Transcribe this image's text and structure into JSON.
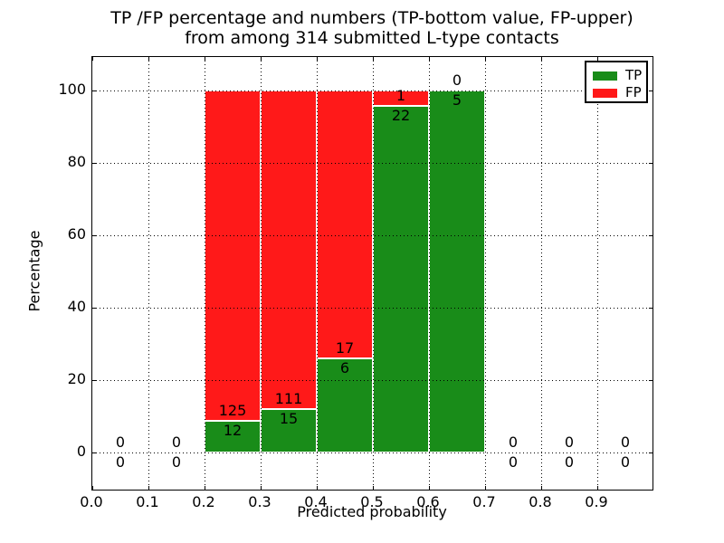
{
  "title": {
    "line1": "TP /FP percentage and numbers (TP-bottom value, FP-upper)",
    "line2": "from among 314 submitted L-type contacts"
  },
  "axes": {
    "ylabel": "Percentage",
    "xlabel": "Predicted probability",
    "y_ticks": [
      0,
      20,
      40,
      60,
      80,
      100
    ],
    "x_ticks": [
      "0.0",
      "0.1",
      "0.2",
      "0.3",
      "0.4",
      "0.5",
      "0.6",
      "0.7",
      "0.8",
      "0.9"
    ]
  },
  "legend": {
    "items": [
      {
        "label": "TP",
        "color": "#198c19"
      },
      {
        "label": "FP",
        "color": "#ff1919"
      }
    ]
  },
  "chart_data": {
    "type": "bar",
    "stacked": true,
    "title": "TP /FP percentage and numbers (TP-bottom value, FP-upper) from among 314 submitted L-type contacts",
    "xlabel": "Predicted probability",
    "ylabel": "Percentage",
    "total_submitted_contacts": 314,
    "x_bin_edges": [
      0.0,
      0.1,
      0.2,
      0.3,
      0.4,
      0.5,
      0.6,
      0.7,
      0.8,
      0.9,
      1.0
    ],
    "categories": [
      "0.0-0.1",
      "0.1-0.2",
      "0.2-0.3",
      "0.3-0.4",
      "0.4-0.5",
      "0.5-0.6",
      "0.6-0.7",
      "0.7-0.8",
      "0.8-0.9",
      "0.9-1.0"
    ],
    "series": [
      {
        "name": "TP",
        "color": "#198c19",
        "counts": [
          0,
          0,
          12,
          15,
          6,
          22,
          5,
          0,
          0,
          0
        ]
      },
      {
        "name": "FP",
        "color": "#ff1919",
        "counts": [
          0,
          0,
          125,
          111,
          17,
          1,
          0,
          0,
          0,
          0
        ]
      }
    ],
    "bar_unit": "percent of bin total (non-empty bins stack to 100%)",
    "tp_percent_by_bin": [
      0,
      0,
      8.76,
      11.9,
      26.09,
      95.65,
      100,
      0,
      0,
      0
    ],
    "xlim": [
      0.0,
      1.0
    ],
    "ylim": [
      -10.25,
      109.5
    ],
    "grid": "dotted black, drawn above bars",
    "legend_position": "upper right"
  }
}
